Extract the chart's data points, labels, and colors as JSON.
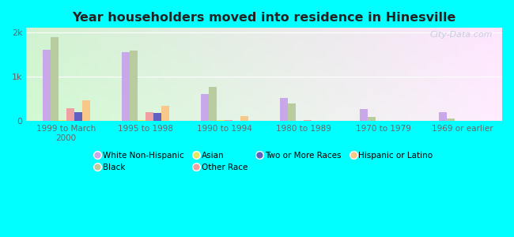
{
  "title": "Year householders moved into residence in Hinesville",
  "categories": [
    "1999 to March\n2000",
    "1995 to 1998",
    "1990 to 1994",
    "1980 to 1989",
    "1970 to 1979",
    "1969 or earlier"
  ],
  "series_order": [
    "White Non-Hispanic",
    "Black",
    "Asian",
    "Other Race",
    "Two or More Races",
    "Hispanic or Latino"
  ],
  "series": {
    "White Non-Hispanic": [
      1600,
      1550,
      620,
      530,
      270,
      200
    ],
    "Black": [
      1900,
      1590,
      780,
      400,
      90,
      55
    ],
    "Asian": [
      30,
      25,
      18,
      8,
      4,
      4
    ],
    "Other Race": [
      290,
      195,
      28,
      18,
      10,
      8
    ],
    "Two or More Races": [
      210,
      180,
      0,
      0,
      0,
      0
    ],
    "Hispanic or Latino": [
      470,
      340,
      115,
      10,
      0,
      0
    ]
  },
  "colors": {
    "White Non-Hispanic": "#c8a8e8",
    "Black": "#b8cca0",
    "Asian": "#e8e860",
    "Other Race": "#f0a0a0",
    "Two or More Races": "#6060c0",
    "Hispanic or Latino": "#f8c888"
  },
  "ylim": [
    0,
    2100
  ],
  "yticks": [
    0,
    1000,
    2000
  ],
  "ytick_labels": [
    "0",
    "1k",
    "2k"
  ],
  "outer_bg": "#00ffff",
  "plot_bg_color": "#d8eed8",
  "watermark": "City-Data.com"
}
